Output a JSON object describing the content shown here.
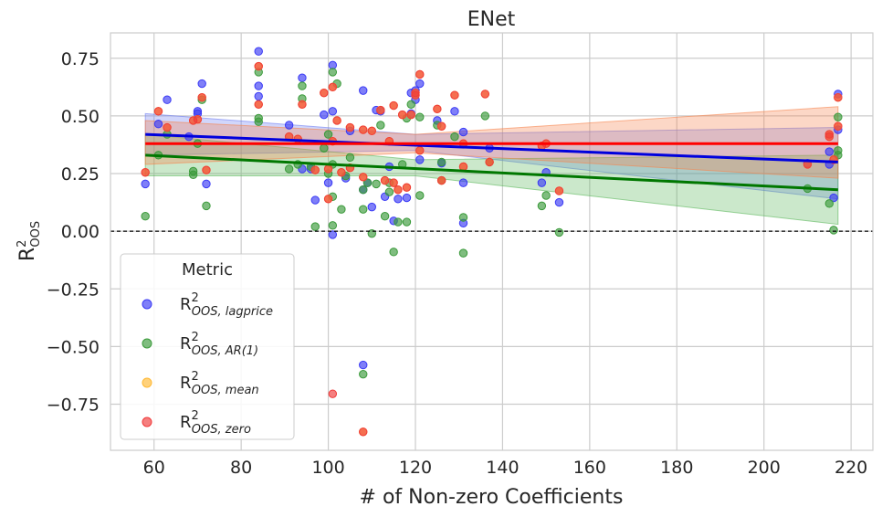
{
  "chart_data": {
    "type": "scatter",
    "title": "ENet",
    "xlabel": "# of Non-zero Coefficients",
    "ylabel": "R²OOS",
    "ylabel_main": "R",
    "ylabel_sup": "2",
    "ylabel_sub": "OOS",
    "xlim": [
      50,
      225
    ],
    "ylim": [
      -0.95,
      0.86
    ],
    "xticks": [
      60,
      80,
      100,
      120,
      140,
      160,
      180,
      200,
      220
    ],
    "xtick_labels": [
      "60",
      "80",
      "100",
      "120",
      "140",
      "160",
      "180",
      "200",
      "220"
    ],
    "yticks": [
      -0.75,
      -0.5,
      -0.25,
      0.0,
      0.25,
      0.5,
      0.75
    ],
    "ytick_labels": [
      "−0.75",
      "−0.50",
      "−0.25",
      "0.00",
      "0.25",
      "0.50",
      "0.75"
    ],
    "grid": true,
    "reference_line": {
      "y": 0.0,
      "style": "dashed",
      "color": "#000000"
    },
    "legend": {
      "title": "Metric",
      "placement": "lower-left",
      "entries": [
        {
          "main": "R",
          "sup": "2",
          "sub": "OOS, lagprice",
          "color": "#3a3af5"
        },
        {
          "main": "R",
          "sup": "2",
          "sub": "OOS, AR(1)",
          "color": "#3a9a3a"
        },
        {
          "main": "R",
          "sup": "2",
          "sub": "OOS, mean",
          "color": "#ffb833"
        },
        {
          "main": "R",
          "sup": "2",
          "sub": "OOS, zero",
          "color": "#f03a3a"
        }
      ]
    },
    "series": [
      {
        "name": "R2 OOS, lagprice",
        "color": "#3a3af5",
        "fit_color": "#0000dd",
        "band_color": "#6f7ff2",
        "fit": {
          "x0": 58,
          "y0": 0.42,
          "x1": 217,
          "y1": 0.3
        },
        "band": {
          "lo0": 0.33,
          "hi0": 0.51,
          "loMid": 0.35,
          "hiMid": 0.42,
          "lo1": 0.14,
          "hi1": 0.45,
          "xmid": 120
        },
        "points": [
          [
            58,
            0.205
          ],
          [
            61,
            0.465
          ],
          [
            63,
            0.57
          ],
          [
            71,
            0.64
          ],
          [
            70,
            0.52
          ],
          [
            70,
            0.51
          ],
          [
            68,
            0.41
          ],
          [
            72,
            0.205
          ],
          [
            84,
            0.78
          ],
          [
            84,
            0.63
          ],
          [
            84,
            0.585
          ],
          [
            91,
            0.46
          ],
          [
            94,
            0.665
          ],
          [
            94,
            0.27
          ],
          [
            96,
            0.27
          ],
          [
            97,
            0.135
          ],
          [
            99,
            0.505
          ],
          [
            100,
            0.21
          ],
          [
            101,
            0.72
          ],
          [
            101,
            0.52
          ],
          [
            101,
            -0.015
          ],
          [
            104,
            0.23
          ],
          [
            105,
            0.435
          ],
          [
            108,
            0.61
          ],
          [
            108,
            0.18
          ],
          [
            108,
            -0.58
          ],
          [
            109,
            0.21
          ],
          [
            110,
            0.105
          ],
          [
            111,
            0.525
          ],
          [
            112,
            0.52
          ],
          [
            113,
            0.15
          ],
          [
            114,
            0.28
          ],
          [
            115,
            0.045
          ],
          [
            116,
            0.14
          ],
          [
            118,
            0.145
          ],
          [
            119,
            0.6
          ],
          [
            119,
            0.51
          ],
          [
            120,
            0.57
          ],
          [
            120,
            0.61
          ],
          [
            121,
            0.64
          ],
          [
            121,
            0.31
          ],
          [
            125,
            0.48
          ],
          [
            126,
            0.295
          ],
          [
            129,
            0.52
          ],
          [
            131,
            0.43
          ],
          [
            131,
            0.21
          ],
          [
            131,
            0.035
          ],
          [
            137,
            0.36
          ],
          [
            149,
            0.21
          ],
          [
            150,
            0.255
          ],
          [
            153,
            0.125
          ],
          [
            210,
            0.295
          ],
          [
            215,
            0.345
          ],
          [
            215,
            0.29
          ],
          [
            216,
            0.145
          ],
          [
            217,
            0.595
          ],
          [
            217,
            0.44
          ]
        ]
      },
      {
        "name": "R2 OOS, AR(1)",
        "color": "#3a9a3a",
        "fit_color": "#007700",
        "band_color": "#5cb85c",
        "fit": {
          "x0": 58,
          "y0": 0.33,
          "x1": 217,
          "y1": 0.18
        },
        "band": {
          "lo0": 0.24,
          "hi0": 0.42,
          "loMid": 0.24,
          "hiMid": 0.31,
          "lo1": 0.03,
          "hi1": 0.33,
          "xmid": 120
        },
        "points": [
          [
            58,
            0.065
          ],
          [
            61,
            0.33
          ],
          [
            63,
            0.42
          ],
          [
            69,
            0.26
          ],
          [
            69,
            0.245
          ],
          [
            70,
            0.38
          ],
          [
            71,
            0.57
          ],
          [
            72,
            0.11
          ],
          [
            84,
            0.49
          ],
          [
            84,
            0.475
          ],
          [
            84,
            0.69
          ],
          [
            91,
            0.27
          ],
          [
            93,
            0.29
          ],
          [
            94,
            0.63
          ],
          [
            94,
            0.575
          ],
          [
            96,
            0.28
          ],
          [
            97,
            0.02
          ],
          [
            99,
            0.36
          ],
          [
            100,
            0.42
          ],
          [
            100,
            0.25
          ],
          [
            101,
            0.29
          ],
          [
            101,
            0.15
          ],
          [
            101,
            0.025
          ],
          [
            101,
            0.69
          ],
          [
            102,
            0.64
          ],
          [
            103,
            0.095
          ],
          [
            104,
            0.24
          ],
          [
            105,
            0.32
          ],
          [
            108,
            0.095
          ],
          [
            108,
            0.18
          ],
          [
            108,
            -0.62
          ],
          [
            109,
            0.21
          ],
          [
            110,
            -0.01
          ],
          [
            111,
            0.205
          ],
          [
            112,
            0.46
          ],
          [
            113,
            0.065
          ],
          [
            114,
            0.17
          ],
          [
            114,
            0.21
          ],
          [
            115,
            -0.09
          ],
          [
            116,
            0.04
          ],
          [
            117,
            0.29
          ],
          [
            118,
            0.04
          ],
          [
            118,
            0.49
          ],
          [
            119,
            0.55
          ],
          [
            121,
            0.495
          ],
          [
            121,
            0.155
          ],
          [
            125,
            0.46
          ],
          [
            126,
            0.22
          ],
          [
            126,
            0.3
          ],
          [
            129,
            0.41
          ],
          [
            131,
            0.06
          ],
          [
            131,
            -0.095
          ],
          [
            136,
            0.5
          ],
          [
            137,
            0.3
          ],
          [
            149,
            0.11
          ],
          [
            150,
            0.155
          ],
          [
            153,
            -0.005
          ],
          [
            210,
            0.185
          ],
          [
            215,
            0.12
          ],
          [
            216,
            0.005
          ],
          [
            217,
            0.495
          ],
          [
            217,
            0.35
          ],
          [
            217,
            0.33
          ]
        ]
      },
      {
        "name": "R2 OOS, mean",
        "color": "#ffb833",
        "fit_color": "#ffb833",
        "band_color": "#ffb833",
        "fit": null,
        "band": null,
        "points": [
          [
            58,
            0.255
          ],
          [
            61,
            0.52
          ],
          [
            63,
            0.45
          ],
          [
            69,
            0.48
          ],
          [
            70,
            0.485
          ],
          [
            71,
            0.58
          ],
          [
            72,
            0.265
          ],
          [
            84,
            0.715
          ],
          [
            84,
            0.55
          ],
          [
            91,
            0.41
          ],
          [
            93,
            0.4
          ],
          [
            94,
            0.55
          ],
          [
            97,
            0.265
          ],
          [
            99,
            0.6
          ],
          [
            100,
            0.14
          ],
          [
            100,
            0.27
          ],
          [
            101,
            0.39
          ],
          [
            101,
            0.625
          ],
          [
            102,
            0.48
          ],
          [
            103,
            0.255
          ],
          [
            105,
            0.275
          ],
          [
            105,
            0.45
          ],
          [
            108,
            0.44
          ],
          [
            108,
            0.235
          ],
          [
            108,
            -0.87
          ],
          [
            110,
            0.435
          ],
          [
            112,
            0.525
          ],
          [
            113,
            0.22
          ],
          [
            114,
            0.39
          ],
          [
            115,
            0.545
          ],
          [
            115,
            0.21
          ],
          [
            116,
            0.18
          ],
          [
            117,
            0.505
          ],
          [
            118,
            0.19
          ],
          [
            119,
            0.505
          ],
          [
            120,
            0.59
          ],
          [
            120,
            0.6
          ],
          [
            121,
            0.68
          ],
          [
            121,
            0.35
          ],
          [
            125,
            0.53
          ],
          [
            126,
            0.22
          ],
          [
            126,
            0.455
          ],
          [
            129,
            0.59
          ],
          [
            131,
            0.28
          ],
          [
            131,
            0.38
          ],
          [
            136,
            0.595
          ],
          [
            137,
            0.3
          ],
          [
            149,
            0.37
          ],
          [
            150,
            0.38
          ],
          [
            153,
            0.175
          ],
          [
            210,
            0.29
          ],
          [
            215,
            0.42
          ],
          [
            215,
            0.41
          ],
          [
            216,
            0.31
          ],
          [
            217,
            0.58
          ],
          [
            217,
            0.455
          ]
        ]
      },
      {
        "name": "R2 OOS, zero",
        "color": "#f03a3a",
        "fit_color": "#ff0000",
        "band_color": "#f7844d",
        "fit": {
          "x0": 58,
          "y0": 0.38,
          "x1": 217,
          "y1": 0.38
        },
        "band": {
          "lo0": 0.29,
          "hi0": 0.48,
          "loMid": 0.34,
          "hiMid": 0.42,
          "lo1": 0.23,
          "hi1": 0.54,
          "xmid": 120
        },
        "points": [
          [
            58,
            0.255
          ],
          [
            61,
            0.52
          ],
          [
            63,
            0.45
          ],
          [
            69,
            0.48
          ],
          [
            70,
            0.485
          ],
          [
            71,
            0.58
          ],
          [
            72,
            0.265
          ],
          [
            84,
            0.715
          ],
          [
            84,
            0.55
          ],
          [
            91,
            0.41
          ],
          [
            93,
            0.4
          ],
          [
            94,
            0.55
          ],
          [
            97,
            0.265
          ],
          [
            99,
            0.6
          ],
          [
            100,
            0.14
          ],
          [
            100,
            0.27
          ],
          [
            101,
            0.39
          ],
          [
            101,
            0.625
          ],
          [
            101,
            -0.705
          ],
          [
            102,
            0.48
          ],
          [
            103,
            0.255
          ],
          [
            105,
            0.275
          ],
          [
            105,
            0.45
          ],
          [
            108,
            0.44
          ],
          [
            108,
            0.235
          ],
          [
            108,
            -0.87
          ],
          [
            110,
            0.435
          ],
          [
            112,
            0.525
          ],
          [
            113,
            0.22
          ],
          [
            114,
            0.39
          ],
          [
            115,
            0.545
          ],
          [
            115,
            0.21
          ],
          [
            116,
            0.18
          ],
          [
            117,
            0.505
          ],
          [
            118,
            0.19
          ],
          [
            119,
            0.505
          ],
          [
            120,
            0.59
          ],
          [
            120,
            0.6
          ],
          [
            121,
            0.68
          ],
          [
            121,
            0.35
          ],
          [
            125,
            0.53
          ],
          [
            126,
            0.22
          ],
          [
            126,
            0.455
          ],
          [
            129,
            0.59
          ],
          [
            131,
            0.28
          ],
          [
            131,
            0.38
          ],
          [
            136,
            0.595
          ],
          [
            137,
            0.3
          ],
          [
            149,
            0.37
          ],
          [
            150,
            0.38
          ],
          [
            153,
            0.175
          ],
          [
            210,
            0.29
          ],
          [
            215,
            0.42
          ],
          [
            215,
            0.41
          ],
          [
            216,
            0.31
          ],
          [
            217,
            0.58
          ],
          [
            217,
            0.455
          ]
        ]
      }
    ]
  }
}
